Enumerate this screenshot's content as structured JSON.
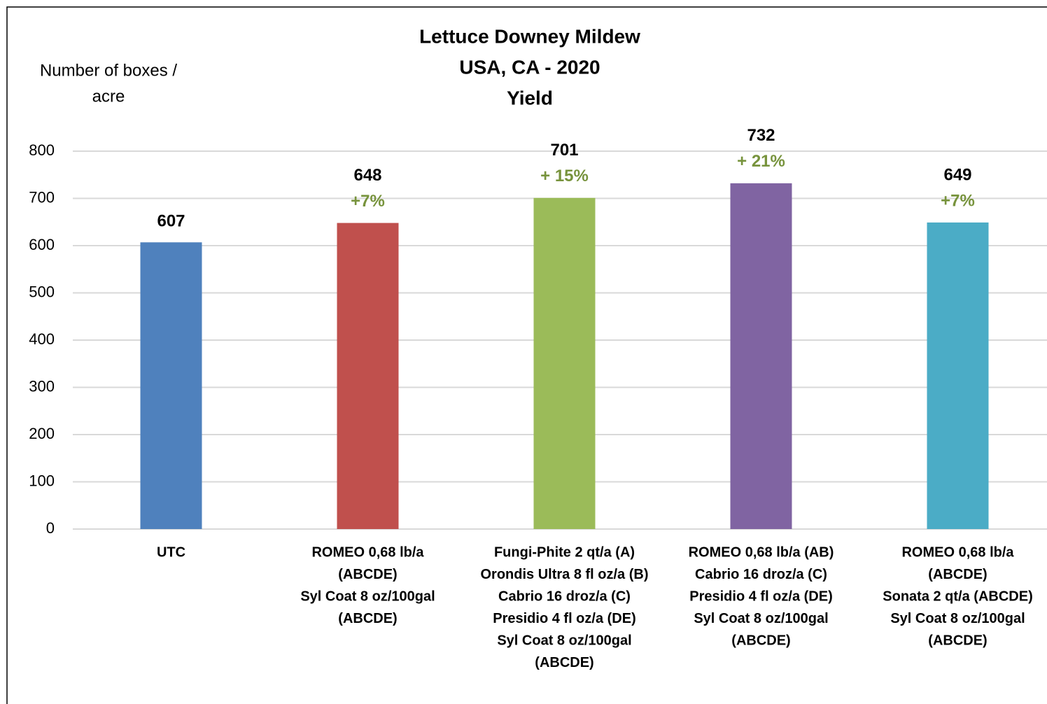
{
  "chart_data": {
    "type": "bar",
    "title": [
      "Lettuce Downey Mildew",
      "USA, CA - 2020",
      "Yield"
    ],
    "y_label": [
      "Number of boxes /",
      "acre"
    ],
    "categories": [
      [
        "UTC"
      ],
      [
        "ROMEO 0,68 lb/a",
        "(ABCDE)",
        "Syl Coat 8 oz/100gal",
        "(ABCDE)"
      ],
      [
        "Fungi-Phite 2 qt/a (A)",
        "Orondis Ultra 8 fl oz/a (B)",
        "Cabrio 16 droz/a (C)",
        "Presidio 4 fl oz/a (DE)",
        "Syl Coat 8 oz/100gal",
        "(ABCDE)"
      ],
      [
        "ROMEO 0,68 lb/a (AB)",
        "Cabrio 16 droz/a (C)",
        "Presidio 4 fl oz/a (DE)",
        "Syl Coat 8 oz/100gal",
        "(ABCDE)"
      ],
      [
        "ROMEO  0,68 lb/a",
        "(ABCDE)",
        "Sonata 2 qt/a (ABCDE)",
        "Syl Coat 8 oz/100gal",
        "(ABCDE)"
      ]
    ],
    "values": [
      607,
      648,
      701,
      732,
      649
    ],
    "annotations": [
      null,
      "+7%",
      "+ 15%",
      "+ 21%",
      "+7%"
    ],
    "colors": [
      "#4f81bd",
      "#c0504d",
      "#9bbb59",
      "#8064a2",
      "#4bacc6"
    ],
    "annotation_color": "#77933c",
    "ylim": [
      0,
      800
    ],
    "yticks": [
      0,
      100,
      200,
      300,
      400,
      500,
      600,
      700,
      800
    ],
    "grid": true
  }
}
